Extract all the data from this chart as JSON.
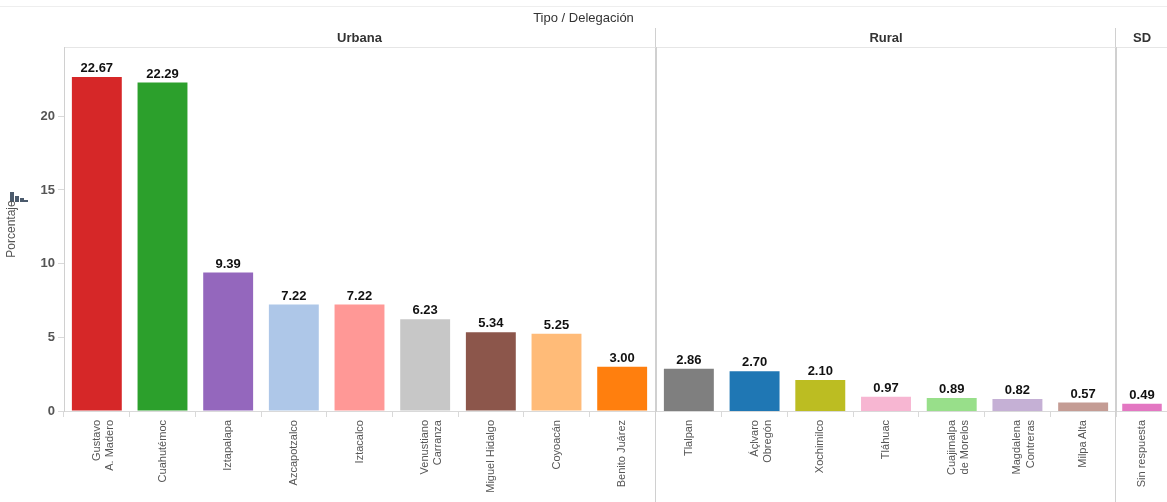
{
  "chart_data": [
    {
      "type": "bar",
      "title": "Urbana",
      "ylabel": "Porcentaje",
      "annotations": [
        "Tipo  /  Delegación"
      ],
      "categories": [
        "Gustavo A. Madero",
        "Cuahutémoc",
        "Iztapalapa",
        "Azcapotzalco",
        "Iztacalco",
        "Venustiano Carranza",
        "Miguel Hidalgo",
        "Coyoacán",
        "Benito Juárez"
      ],
      "values": [
        22.67,
        22.29,
        9.39,
        7.22,
        7.22,
        6.23,
        5.34,
        5.25,
        3.0
      ],
      "value_labels": [
        "22.67",
        "22.29",
        "9.39",
        "7.22",
        "7.22",
        "6.23",
        "5.34",
        "5.25",
        "3.00"
      ],
      "colors": [
        "#d62728",
        "#2ca02c",
        "#9467bd",
        "#aec7e8",
        "#ff9896",
        "#c7c7c7",
        "#8c564b",
        "#ffbb78",
        "#ff7f0e"
      ],
      "ylim": [
        0,
        24.7
      ],
      "yticks": [
        0,
        5,
        10,
        15,
        20
      ],
      "grid": false,
      "legend": false
    },
    {
      "type": "bar",
      "title": "Rural",
      "categories": [
        "Tlalpan",
        "Áçlvaro Obregón",
        "Xochimilco",
        "Tláhuac",
        "Cuajimalpa de Morelos",
        "Magdalena Contreras",
        "Milpa Alta"
      ],
      "values": [
        2.86,
        2.7,
        2.1,
        0.97,
        0.89,
        0.82,
        0.57
      ],
      "value_labels": [
        "2.86",
        "2.70",
        "2.10",
        "0.97",
        "0.89",
        "0.82",
        "0.57"
      ],
      "colors": [
        "#7f7f7f",
        "#1f77b4",
        "#bcbd22",
        "#f7b6d2",
        "#98df8a",
        "#c5b0d5",
        "#c49c94"
      ],
      "ylim": [
        0,
        24.7
      ],
      "yticks": [
        0,
        5,
        10,
        15,
        20
      ],
      "tick_labels": "x",
      "grid": false,
      "legend": false
    },
    {
      "type": "bar",
      "title": "SD",
      "categories": [
        "Sin respuesta"
      ],
      "values": [
        0.49
      ],
      "value_labels": [
        "0.49"
      ],
      "colors": [
        "#e377c2"
      ],
      "ylim": [
        0,
        24.7
      ],
      "yticks": [
        0,
        5,
        10,
        15,
        20
      ],
      "tick_labels": "x",
      "grid": false,
      "legend": false
    }
  ]
}
